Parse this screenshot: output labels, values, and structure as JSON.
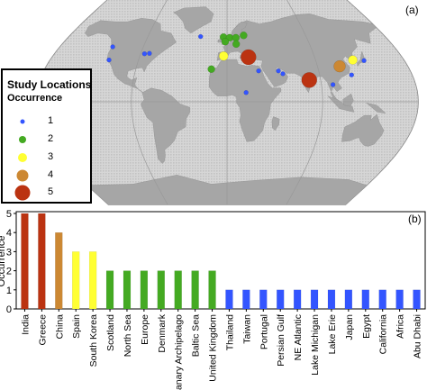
{
  "map": {
    "panel_label": "(a)",
    "legend": {
      "title": "Study Locations",
      "subtitle": "Occurrence",
      "items": [
        {
          "label": "1",
          "color": "#3355ff",
          "size": 5
        },
        {
          "label": "2",
          "color": "#44aa22",
          "size": 8
        },
        {
          "label": "3",
          "color": "#ffff33",
          "size": 10
        },
        {
          "label": "4",
          "color": "#cc8833",
          "size": 13
        },
        {
          "label": "5",
          "color": "#bb3311",
          "size": 17
        }
      ]
    },
    "markers": [
      {
        "occurrence": 1,
        "lon": -123.0,
        "lat": 48.0
      },
      {
        "occurrence": 1,
        "lon": -86.0,
        "lat": 42.0
      },
      {
        "occurrence": 1,
        "lon": -81.0,
        "lat": 42.3
      },
      {
        "occurrence": 1,
        "lon": -120.0,
        "lat": 36.5
      },
      {
        "occurrence": 1,
        "lon": 50.5,
        "lat": 27.0
      },
      {
        "occurrence": 1,
        "lon": 54.4,
        "lat": 24.5
      },
      {
        "occurrence": 1,
        "lon": 31.0,
        "lat": 27.0
      },
      {
        "occurrence": 1,
        "lon": 101.0,
        "lat": 15.0
      },
      {
        "occurrence": 1,
        "lon": 121.0,
        "lat": 23.5
      },
      {
        "occurrence": 1,
        "lon": 139.0,
        "lat": 36.0
      },
      {
        "occurrence": 1,
        "lon": 18.0,
        "lat": 8.0
      },
      {
        "occurrence": 1,
        "lon": -30.0,
        "lat": 57.0
      },
      {
        "occurrence": 2,
        "lon": -4.0,
        "lat": 56.5
      },
      {
        "occurrence": 2,
        "lon": 3.0,
        "lat": 56.0
      },
      {
        "occurrence": 2,
        "lon": 10.0,
        "lat": 56.0
      },
      {
        "occurrence": 2,
        "lon": 19.0,
        "lat": 58.0
      },
      {
        "occurrence": 2,
        "lon": -2.0,
        "lat": 52.5
      },
      {
        "occurrence": 2,
        "lon": 10.0,
        "lat": 50.5
      },
      {
        "occurrence": 2,
        "lon": -15.5,
        "lat": 28.5
      },
      {
        "occurrence": 3,
        "lon": -3.5,
        "lat": 40.0
      },
      {
        "occurrence": 3,
        "lon": 127.8,
        "lat": 36.5
      },
      {
        "occurrence": 4,
        "lon": 112.0,
        "lat": 31.0
      },
      {
        "occurrence": 5,
        "lon": 22.0,
        "lat": 39.0
      },
      {
        "occurrence": 5,
        "lon": 79.0,
        "lat": 19.0
      }
    ]
  },
  "chart": {
    "panel_label": "(b)"
  },
  "chart_data": {
    "type": "bar",
    "title": "",
    "xlabel": "",
    "ylabel": "Occurrence",
    "ylim": [
      0,
      5
    ],
    "yticks": [
      0,
      1,
      2,
      3,
      4,
      5
    ],
    "grid": false,
    "categories": [
      "India",
      "Greece",
      "China",
      "Spain",
      "South Korea",
      "Scotland",
      "North Sea",
      "Europe",
      "Denmark",
      "Canary Archipelago",
      "Baltic Sea",
      "United Kingdom",
      "Thailand",
      "Taiwan",
      "Portugal",
      "Persian Gulf",
      "NE Atlantic",
      "Lake Michigan",
      "Lake Erie",
      "Japan",
      "Egypt",
      "California",
      "Africa",
      "Abu Dhabi"
    ],
    "values": [
      5,
      5,
      4,
      3,
      3,
      2,
      2,
      2,
      2,
      2,
      2,
      2,
      1,
      1,
      1,
      1,
      1,
      1,
      1,
      1,
      1,
      1,
      1,
      1
    ],
    "bar_colors": {
      "5": "#bb3311",
      "4": "#cc8833",
      "3": "#ffff33",
      "2": "#44aa22",
      "1": "#3355ff"
    }
  }
}
